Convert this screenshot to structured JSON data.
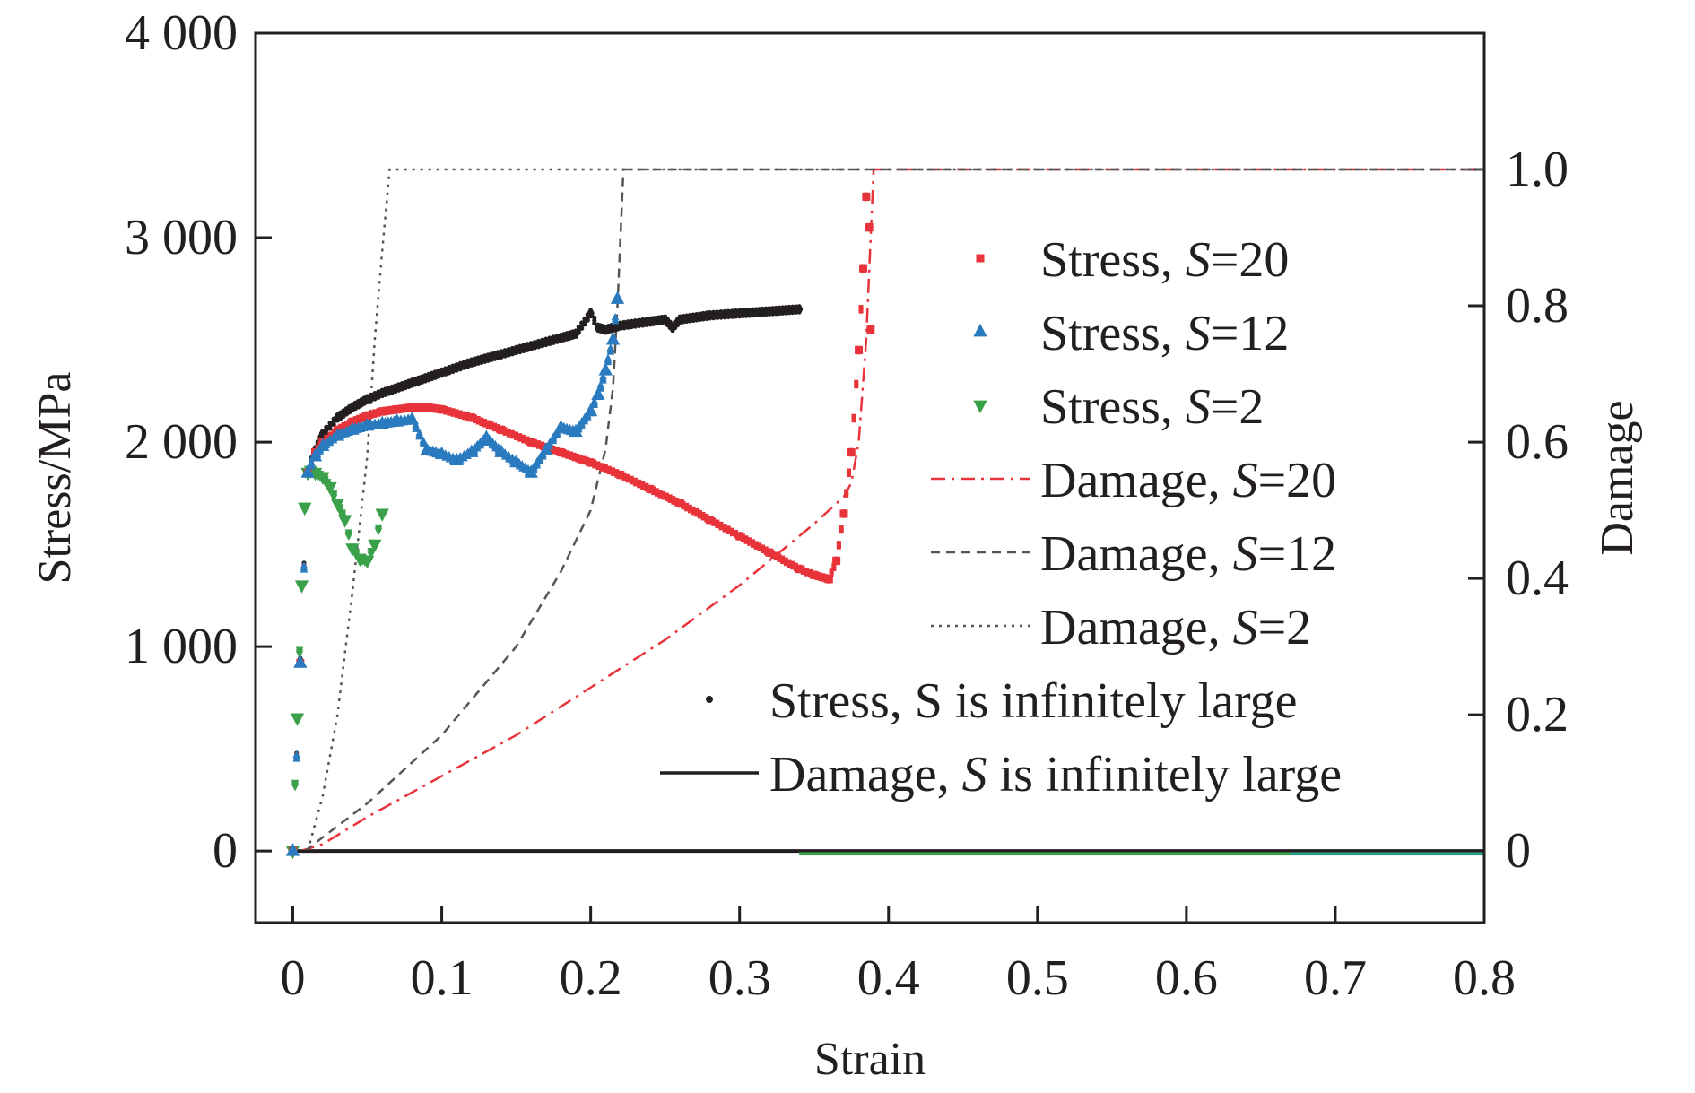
{
  "chart_data": {
    "type": "scatter",
    "xlabel": "Strain",
    "ylabel": "Stress/MPa",
    "y2label": "Damage",
    "xlim": [
      -0.025,
      0.8
    ],
    "ylim": [
      -350,
      4000
    ],
    "y2lim": [
      -0.105,
      1.2
    ],
    "xticks": [
      {
        "v": 0,
        "label": "0"
      },
      {
        "v": 0.1,
        "label": "0.1"
      },
      {
        "v": 0.2,
        "label": "0.2"
      },
      {
        "v": 0.3,
        "label": "0.3"
      },
      {
        "v": 0.4,
        "label": "0.4"
      },
      {
        "v": 0.5,
        "label": "0.5"
      },
      {
        "v": 0.6,
        "label": "0.6"
      },
      {
        "v": 0.7,
        "label": "0.7"
      },
      {
        "v": 0.8,
        "label": "0.8"
      }
    ],
    "yticks": [
      {
        "v": 0,
        "label": "0"
      },
      {
        "v": 1000,
        "label": "1 000"
      },
      {
        "v": 2000,
        "label": "2 000"
      },
      {
        "v": 3000,
        "label": "3 000"
      },
      {
        "v": 4000,
        "label": "4 000"
      }
    ],
    "y2ticks": [
      {
        "v": 0,
        "label": "0"
      },
      {
        "v": 0.2,
        "label": "0.2"
      },
      {
        "v": 0.4,
        "label": "0.4"
      },
      {
        "v": 0.6,
        "label": "0.6"
      },
      {
        "v": 0.8,
        "label": "0.8"
      },
      {
        "v": 1.0,
        "label": "1.0"
      }
    ],
    "legend_position": "right",
    "series": [
      {
        "name": "Stress, S=20",
        "s_value": "20",
        "axis": "left",
        "kind": "stress",
        "marker": "square",
        "color": "#e8333a",
        "x": [
          0,
          0.005,
          0.01,
          0.015,
          0.02,
          0.03,
          0.04,
          0.05,
          0.06,
          0.07,
          0.08,
          0.09,
          0.1,
          0.12,
          0.14,
          0.16,
          0.18,
          0.2,
          0.22,
          0.24,
          0.26,
          0.28,
          0.3,
          0.32,
          0.34,
          0.35,
          0.36,
          0.365,
          0.37,
          0.375,
          0.38,
          0.383,
          0.385,
          0.387,
          0.388
        ],
        "y": [
          0,
          920,
          1850,
          1950,
          2000,
          2060,
          2100,
          2130,
          2150,
          2160,
          2170,
          2170,
          2160,
          2120,
          2060,
          2000,
          1950,
          1900,
          1840,
          1770,
          1700,
          1620,
          1540,
          1460,
          1380,
          1350,
          1330,
          1420,
          1650,
          1950,
          2450,
          2850,
          3200,
          3050,
          2550
        ]
      },
      {
        "name": "Stress, S=12",
        "s_value": "12",
        "axis": "left",
        "kind": "stress",
        "marker": "triangle-up",
        "color": "#2a7ac0",
        "x": [
          0,
          0.005,
          0.01,
          0.015,
          0.02,
          0.03,
          0.04,
          0.05,
          0.06,
          0.07,
          0.08,
          0.09,
          0.1,
          0.11,
          0.12,
          0.13,
          0.14,
          0.15,
          0.16,
          0.17,
          0.18,
          0.19,
          0.2,
          0.205,
          0.21,
          0.215,
          0.218
        ],
        "y": [
          0,
          920,
          1850,
          1930,
          1980,
          2030,
          2060,
          2080,
          2090,
          2100,
          2110,
          1960,
          1940,
          1910,
          1950,
          2020,
          1950,
          1900,
          1850,
          1960,
          2070,
          2050,
          2150,
          2230,
          2350,
          2500,
          2700
        ]
      },
      {
        "name": "Stress, S=2",
        "s_value": "2",
        "axis": "left",
        "kind": "stress",
        "marker": "triangle-down",
        "color": "#3aa04a",
        "x": [
          0,
          0.003,
          0.006,
          0.008,
          0.01,
          0.012,
          0.015,
          0.02,
          0.025,
          0.03,
          0.035,
          0.04,
          0.045,
          0.05,
          0.055,
          0.06
        ],
        "y": [
          0,
          650,
          1300,
          1680,
          1850,
          1860,
          1850,
          1830,
          1780,
          1700,
          1620,
          1480,
          1430,
          1420,
          1500,
          1650
        ]
      },
      {
        "name": "Stress, S is infinitely large",
        "s_value": "",
        "axis": "left",
        "kind": "stress",
        "marker": "dot",
        "color": "#231f20",
        "x": [
          0,
          0.005,
          0.01,
          0.015,
          0.02,
          0.03,
          0.04,
          0.05,
          0.06,
          0.08,
          0.1,
          0.12,
          0.14,
          0.16,
          0.18,
          0.19,
          0.2,
          0.205,
          0.21,
          0.22,
          0.24,
          0.25,
          0.255,
          0.26,
          0.28,
          0.3,
          0.32,
          0.34
        ],
        "y": [
          0,
          930,
          1860,
          1960,
          2040,
          2120,
          2170,
          2210,
          2240,
          2290,
          2340,
          2390,
          2430,
          2470,
          2510,
          2530,
          2630,
          2560,
          2550,
          2570,
          2590,
          2600,
          2560,
          2600,
          2620,
          2630,
          2640,
          2650
        ]
      },
      {
        "name": "Damage, S=20",
        "s_value": "20",
        "axis": "right",
        "kind": "damage",
        "dash": "dashdot",
        "color": "#e8333a",
        "x": [
          0.005,
          0.02,
          0.05,
          0.1,
          0.15,
          0.2,
          0.25,
          0.3,
          0.35,
          0.37,
          0.375,
          0.38,
          0.385,
          0.39,
          0.8
        ],
        "y": [
          0,
          0.01,
          0.05,
          0.11,
          0.17,
          0.24,
          0.31,
          0.39,
          0.48,
          0.52,
          0.54,
          0.6,
          0.75,
          1.0,
          1.0
        ]
      },
      {
        "name": "Damage, S=12",
        "s_value": "12",
        "axis": "right",
        "kind": "damage",
        "dash": "dash",
        "color": "#555555",
        "x": [
          0.008,
          0.05,
          0.1,
          0.15,
          0.18,
          0.2,
          0.21,
          0.215,
          0.218,
          0.222,
          0.8
        ],
        "y": [
          0,
          0.07,
          0.17,
          0.3,
          0.41,
          0.5,
          0.59,
          0.68,
          0.8,
          1.0,
          1.0
        ]
      },
      {
        "name": "Damage, S=2",
        "s_value": "2",
        "axis": "right",
        "kind": "damage",
        "dash": "dot",
        "color": "#555555",
        "x": [
          0.01,
          0.02,
          0.03,
          0.04,
          0.05,
          0.055,
          0.06,
          0.065,
          0.8
        ],
        "y": [
          0,
          0.08,
          0.2,
          0.38,
          0.58,
          0.75,
          0.88,
          1.0,
          1.0
        ]
      },
      {
        "name": "Damage, S is infinitely large",
        "s_value": "",
        "axis": "right",
        "kind": "damage",
        "dash": "solid",
        "color": "#231f20",
        "x": [
          0,
          0.8
        ],
        "y": [
          0,
          0
        ]
      }
    ],
    "legend": [
      {
        "prefix": "Stress, ",
        "suffix": "=20",
        "italic_s": true,
        "sym": "square",
        "color": "#e8333a"
      },
      {
        "prefix": "Stress, ",
        "suffix": "=12",
        "italic_s": true,
        "sym": "triangle-up",
        "color": "#2a7ac0"
      },
      {
        "prefix": "Stress, ",
        "suffix": "=2",
        "italic_s": true,
        "sym": "triangle-down",
        "color": "#3aa04a"
      },
      {
        "prefix": "Damage, ",
        "suffix": "=20",
        "italic_s": true,
        "sym": "dashdot",
        "color": "#e8333a"
      },
      {
        "prefix": "Damage, ",
        "suffix": "=12",
        "italic_s": true,
        "sym": "dash",
        "color": "#555555"
      },
      {
        "prefix": "Damage, ",
        "suffix": "=2",
        "italic_s": true,
        "sym": "dot",
        "color": "#555555"
      },
      {
        "prefix": "Stress, S is infinitely large",
        "suffix": "",
        "italic_s": false,
        "sym": "dotmark",
        "color": "#231f20"
      },
      {
        "prefix": "Damage, ",
        "suffix": " is infinitely large",
        "italic_s": true,
        "sym": "solid",
        "color": "#231f20"
      }
    ],
    "zero_line_colors": [
      "#231f20",
      "#3aa04a",
      "#2a9a8a"
    ]
  }
}
